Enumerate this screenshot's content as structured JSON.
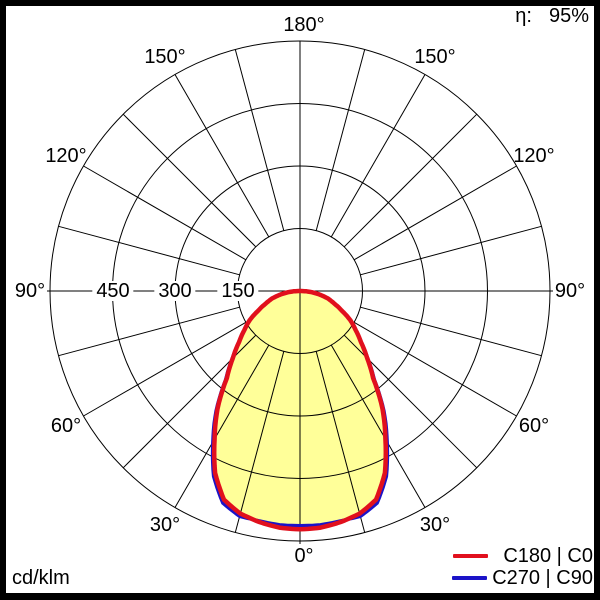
{
  "header": {
    "efficiency_label": "η:",
    "efficiency_value": "95%"
  },
  "footer": {
    "unit_label": "cd/klm"
  },
  "legend": {
    "items": [
      {
        "label": "C180 | C0",
        "color": "#e1101d"
      },
      {
        "label": "C270 | C90",
        "color": "#1b13c8"
      }
    ]
  },
  "chart_data": {
    "type": "polar",
    "subtype": "luminous-intensity-distribution",
    "unit": "cd/klm",
    "fill": "#ffff99",
    "grid": {
      "rmax": 600,
      "radial_circles": [
        150,
        300,
        450,
        600
      ],
      "radial_tick_values": [
        450,
        300,
        150
      ],
      "angle_step_deg": 15,
      "angle_labels": [
        {
          "text": "0°",
          "deg": 0,
          "sides": [
            "bottom"
          ]
        },
        {
          "text": "30°",
          "deg": 30,
          "sides": [
            "left",
            "right"
          ]
        },
        {
          "text": "60°",
          "deg": 60,
          "sides": [
            "left",
            "right"
          ]
        },
        {
          "text": "90°",
          "deg": 90,
          "sides": [
            "left",
            "right"
          ]
        },
        {
          "text": "120°",
          "deg": 120,
          "sides": [
            "left",
            "right"
          ]
        },
        {
          "text": "150°",
          "deg": 150,
          "sides": [
            "left",
            "right"
          ]
        },
        {
          "text": "180°",
          "deg": 180,
          "sides": [
            "top"
          ]
        }
      ]
    },
    "series": [
      {
        "name": "C180 | C0",
        "color": "#e1101d",
        "stroke_width": 4.5,
        "gamma_step_deg": 5,
        "symmetric": true,
        "gamma_deg": [
          0,
          5,
          10,
          15,
          20,
          25,
          30,
          35,
          40,
          45,
          50,
          55,
          60,
          65,
          70,
          75,
          80,
          85,
          90
        ],
        "values": [
          572,
          570,
          563,
          553,
          533,
          482,
          410,
          345,
          273,
          228,
          191,
          163,
          139,
          110,
          87,
          69,
          46,
          24,
          3
        ]
      },
      {
        "name": "C270 | C90",
        "color": "#1b13c8",
        "stroke_width": 3.2,
        "gamma_step_deg": 5,
        "symmetric": true,
        "gamma_deg": [
          0,
          5,
          10,
          15,
          20,
          25,
          30,
          35,
          40,
          45,
          50,
          55,
          60,
          65,
          70,
          75,
          80,
          85,
          90
        ],
        "values": [
          563,
          563,
          560,
          560,
          542,
          491,
          419,
          352,
          278,
          231,
          192,
          163,
          139,
          110,
          87,
          69,
          46,
          24,
          3
        ]
      }
    ]
  }
}
